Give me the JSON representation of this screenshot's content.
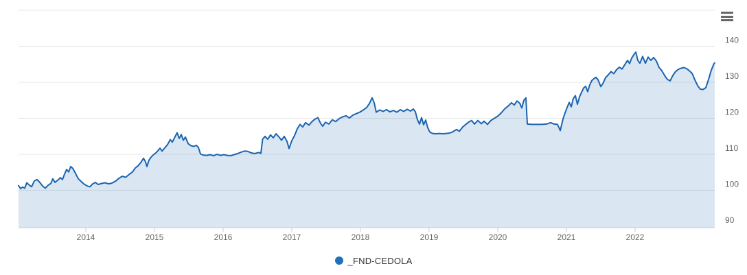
{
  "chart": {
    "legend": {
      "label": "_FND-CEDOLA",
      "marker_color": "#1f71bd",
      "text_color": "#333333",
      "position": "bottom-center"
    },
    "context_menu_icon": "hamburger-menu",
    "colors": {
      "line": "#1a64b0",
      "area_fill": "rgba(26,100,176,0.16)",
      "gridline": "#e6e6e6",
      "axis_line": "#cccccc",
      "tick": "#cccccc",
      "axis_label": "#666666"
    },
    "chart_data": {
      "type": "area",
      "title": "",
      "xlabel": "",
      "ylabel": "",
      "grid": true,
      "legend_position": "bottom",
      "x_range": [
        2013.02,
        2023.16
      ],
      "y_range": [
        89.62,
        150.0
      ],
      "x_ticks": [
        2014,
        2015,
        2016,
        2017,
        2018,
        2019,
        2020,
        2021,
        2022
      ],
      "y_ticks": [
        90,
        100,
        110,
        120,
        130,
        140
      ],
      "y_gridlines": [
        100,
        110,
        120,
        130,
        140,
        150
      ],
      "series": [
        {
          "name": "_FND-CEDOLA",
          "points": [
            [
              2013.02,
              101.3
            ],
            [
              2013.05,
              100.5
            ],
            [
              2013.08,
              100.9
            ],
            [
              2013.11,
              100.6
            ],
            [
              2013.14,
              102.1
            ],
            [
              2013.18,
              101.4
            ],
            [
              2013.21,
              101.0
            ],
            [
              2013.25,
              102.6
            ],
            [
              2013.29,
              103.0
            ],
            [
              2013.33,
              102.2
            ],
            [
              2013.37,
              101.2
            ],
            [
              2013.41,
              100.6
            ],
            [
              2013.45,
              101.4
            ],
            [
              2013.49,
              101.9
            ],
            [
              2013.52,
              103.2
            ],
            [
              2013.55,
              102.2
            ],
            [
              2013.59,
              102.8
            ],
            [
              2013.63,
              103.5
            ],
            [
              2013.66,
              103.0
            ],
            [
              2013.69,
              104.5
            ],
            [
              2013.72,
              105.8
            ],
            [
              2013.75,
              105.1
            ],
            [
              2013.78,
              106.6
            ],
            [
              2013.81,
              106.1
            ],
            [
              2013.85,
              104.7
            ],
            [
              2013.89,
              103.2
            ],
            [
              2013.93,
              102.5
            ],
            [
              2013.97,
              101.8
            ],
            [
              2014.02,
              101.2
            ],
            [
              2014.06,
              101.0
            ],
            [
              2014.1,
              101.8
            ],
            [
              2014.14,
              102.2
            ],
            [
              2014.18,
              101.6
            ],
            [
              2014.23,
              101.9
            ],
            [
              2014.28,
              102.1
            ],
            [
              2014.33,
              101.8
            ],
            [
              2014.38,
              102.0
            ],
            [
              2014.43,
              102.5
            ],
            [
              2014.48,
              103.3
            ],
            [
              2014.53,
              103.9
            ],
            [
              2014.58,
              103.6
            ],
            [
              2014.63,
              104.4
            ],
            [
              2014.68,
              105.1
            ],
            [
              2014.72,
              106.2
            ],
            [
              2014.76,
              106.8
            ],
            [
              2014.8,
              107.7
            ],
            [
              2014.84,
              108.9
            ],
            [
              2014.87,
              107.9
            ],
            [
              2014.89,
              106.6
            ],
            [
              2014.92,
              108.4
            ],
            [
              2014.95,
              109.2
            ],
            [
              2014.98,
              109.8
            ],
            [
              2015.02,
              110.4
            ],
            [
              2015.05,
              111.0
            ],
            [
              2015.08,
              111.7
            ],
            [
              2015.11,
              110.9
            ],
            [
              2015.15,
              111.8
            ],
            [
              2015.19,
              112.7
            ],
            [
              2015.23,
              114.1
            ],
            [
              2015.26,
              113.4
            ],
            [
              2015.3,
              114.9
            ],
            [
              2015.33,
              116.0
            ],
            [
              2015.36,
              114.4
            ],
            [
              2015.39,
              115.5
            ],
            [
              2015.42,
              113.9
            ],
            [
              2015.45,
              114.8
            ],
            [
              2015.49,
              113.0
            ],
            [
              2015.53,
              112.4
            ],
            [
              2015.57,
              112.2
            ],
            [
              2015.61,
              112.5
            ],
            [
              2015.64,
              111.9
            ],
            [
              2015.67,
              110.1
            ],
            [
              2015.71,
              109.8
            ],
            [
              2015.76,
              109.7
            ],
            [
              2015.81,
              109.9
            ],
            [
              2015.86,
              109.6
            ],
            [
              2015.91,
              110.0
            ],
            [
              2015.96,
              109.7
            ],
            [
              2016.01,
              109.9
            ],
            [
              2016.06,
              109.7
            ],
            [
              2016.11,
              109.6
            ],
            [
              2016.16,
              109.9
            ],
            [
              2016.21,
              110.2
            ],
            [
              2016.26,
              110.6
            ],
            [
              2016.31,
              110.9
            ],
            [
              2016.36,
              110.8
            ],
            [
              2016.41,
              110.4
            ],
            [
              2016.46,
              110.2
            ],
            [
              2016.51,
              110.5
            ],
            [
              2016.55,
              110.3
            ],
            [
              2016.575,
              114.2
            ],
            [
              2016.61,
              115.0
            ],
            [
              2016.65,
              114.2
            ],
            [
              2016.69,
              115.4
            ],
            [
              2016.73,
              114.6
            ],
            [
              2016.77,
              115.7
            ],
            [
              2016.81,
              114.9
            ],
            [
              2016.85,
              113.9
            ],
            [
              2016.89,
              115.0
            ],
            [
              2016.93,
              113.6
            ],
            [
              2016.96,
              111.6
            ],
            [
              2017.0,
              113.8
            ],
            [
              2017.04,
              115.2
            ],
            [
              2017.08,
              117.1
            ],
            [
              2017.12,
              118.3
            ],
            [
              2017.16,
              117.6
            ],
            [
              2017.2,
              118.8
            ],
            [
              2017.25,
              118.1
            ],
            [
              2017.3,
              119.2
            ],
            [
              2017.34,
              119.8
            ],
            [
              2017.38,
              120.2
            ],
            [
              2017.42,
              118.6
            ],
            [
              2017.45,
              117.8
            ],
            [
              2017.49,
              118.9
            ],
            [
              2017.54,
              118.4
            ],
            [
              2017.59,
              119.6
            ],
            [
              2017.64,
              119.1
            ],
            [
              2017.69,
              119.9
            ],
            [
              2017.74,
              120.4
            ],
            [
              2017.79,
              120.7
            ],
            [
              2017.84,
              120.1
            ],
            [
              2017.89,
              120.9
            ],
            [
              2017.94,
              121.3
            ],
            [
              2017.99,
              121.7
            ],
            [
              2018.04,
              122.3
            ],
            [
              2018.09,
              123.0
            ],
            [
              2018.13,
              124.1
            ],
            [
              2018.17,
              125.7
            ],
            [
              2018.2,
              124.3
            ],
            [
              2018.23,
              121.7
            ],
            [
              2018.28,
              122.3
            ],
            [
              2018.33,
              121.9
            ],
            [
              2018.38,
              122.4
            ],
            [
              2018.43,
              121.8
            ],
            [
              2018.48,
              122.2
            ],
            [
              2018.53,
              121.7
            ],
            [
              2018.58,
              122.4
            ],
            [
              2018.63,
              121.9
            ],
            [
              2018.68,
              122.5
            ],
            [
              2018.73,
              122.0
            ],
            [
              2018.77,
              122.6
            ],
            [
              2018.8,
              121.8
            ],
            [
              2018.83,
              119.6
            ],
            [
              2018.86,
              118.4
            ],
            [
              2018.89,
              120.2
            ],
            [
              2018.92,
              118.2
            ],
            [
              2018.95,
              119.5
            ],
            [
              2018.98,
              117.4
            ],
            [
              2019.01,
              116.2
            ],
            [
              2019.05,
              115.8
            ],
            [
              2019.1,
              115.7
            ],
            [
              2019.15,
              115.8
            ],
            [
              2019.2,
              115.7
            ],
            [
              2019.25,
              115.8
            ],
            [
              2019.3,
              115.9
            ],
            [
              2019.35,
              116.3
            ],
            [
              2019.4,
              116.9
            ],
            [
              2019.44,
              116.4
            ],
            [
              2019.49,
              117.6
            ],
            [
              2019.54,
              118.4
            ],
            [
              2019.58,
              119.0
            ],
            [
              2019.62,
              119.4
            ],
            [
              2019.66,
              118.4
            ],
            [
              2019.71,
              119.4
            ],
            [
              2019.76,
              118.5
            ],
            [
              2019.8,
              119.2
            ],
            [
              2019.85,
              118.3
            ],
            [
              2019.9,
              119.4
            ],
            [
              2019.95,
              120.0
            ],
            [
              2020.0,
              120.6
            ],
            [
              2020.05,
              121.5
            ],
            [
              2020.1,
              122.6
            ],
            [
              2020.15,
              123.4
            ],
            [
              2020.2,
              124.3
            ],
            [
              2020.24,
              123.7
            ],
            [
              2020.28,
              124.8
            ],
            [
              2020.32,
              124.2
            ],
            [
              2020.35,
              122.9
            ],
            [
              2020.38,
              125.0
            ],
            [
              2020.41,
              125.7
            ],
            [
              2020.43,
              118.4
            ],
            [
              2020.5,
              118.3
            ],
            [
              2020.57,
              118.3
            ],
            [
              2020.64,
              118.3
            ],
            [
              2020.71,
              118.4
            ],
            [
              2020.77,
              118.8
            ],
            [
              2020.82,
              118.4
            ],
            [
              2020.87,
              118.3
            ],
            [
              2020.91,
              116.6
            ],
            [
              2020.95,
              119.8
            ],
            [
              2020.98,
              121.5
            ],
            [
              2021.01,
              123.0
            ],
            [
              2021.04,
              124.4
            ],
            [
              2021.07,
              123.2
            ],
            [
              2021.1,
              125.5
            ],
            [
              2021.13,
              126.3
            ],
            [
              2021.16,
              123.9
            ],
            [
              2021.19,
              125.9
            ],
            [
              2021.22,
              127.2
            ],
            [
              2021.25,
              128.4
            ],
            [
              2021.28,
              128.9
            ],
            [
              2021.31,
              127.4
            ],
            [
              2021.34,
              129.3
            ],
            [
              2021.37,
              130.5
            ],
            [
              2021.4,
              131.0
            ],
            [
              2021.43,
              131.4
            ],
            [
              2021.46,
              130.7
            ],
            [
              2021.5,
              128.8
            ],
            [
              2021.53,
              129.6
            ],
            [
              2021.57,
              131.3
            ],
            [
              2021.61,
              132.1
            ],
            [
              2021.65,
              133.0
            ],
            [
              2021.69,
              132.4
            ],
            [
              2021.73,
              133.5
            ],
            [
              2021.77,
              134.2
            ],
            [
              2021.81,
              133.7
            ],
            [
              2021.85,
              134.9
            ],
            [
              2021.89,
              136.1
            ],
            [
              2021.92,
              135.2
            ],
            [
              2021.95,
              136.7
            ],
            [
              2021.98,
              137.6
            ],
            [
              2022.01,
              138.4
            ],
            [
              2022.04,
              136.1
            ],
            [
              2022.07,
              135.3
            ],
            [
              2022.11,
              137.2
            ],
            [
              2022.15,
              135.3
            ],
            [
              2022.19,
              137.0
            ],
            [
              2022.23,
              136.1
            ],
            [
              2022.27,
              136.9
            ],
            [
              2022.31,
              135.9
            ],
            [
              2022.35,
              134.1
            ],
            [
              2022.39,
              133.2
            ],
            [
              2022.43,
              131.9
            ],
            [
              2022.47,
              130.8
            ],
            [
              2022.51,
              130.4
            ],
            [
              2022.55,
              131.9
            ],
            [
              2022.59,
              133.0
            ],
            [
              2022.63,
              133.6
            ],
            [
              2022.67,
              133.9
            ],
            [
              2022.71,
              134.1
            ],
            [
              2022.75,
              133.8
            ],
            [
              2022.79,
              133.2
            ],
            [
              2022.83,
              132.5
            ],
            [
              2022.87,
              130.7
            ],
            [
              2022.91,
              129.1
            ],
            [
              2022.95,
              128.1
            ],
            [
              2022.99,
              128.0
            ],
            [
              2023.03,
              128.5
            ],
            [
              2023.07,
              130.8
            ],
            [
              2023.11,
              133.4
            ],
            [
              2023.15,
              135.2
            ],
            [
              2023.16,
              135.4
            ]
          ]
        }
      ]
    }
  }
}
